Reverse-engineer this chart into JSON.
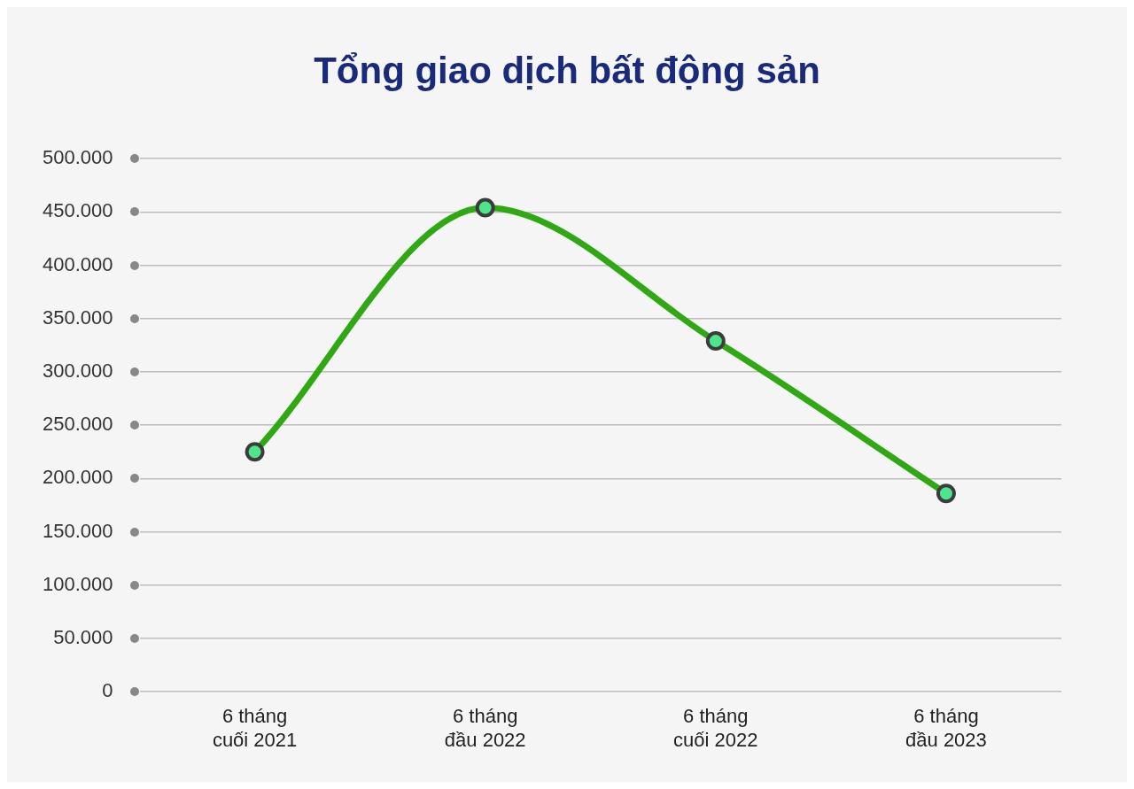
{
  "chart_data": {
    "type": "line",
    "title": "Tổng giao dịch bất động sản",
    "categories": [
      "6 tháng\ncuối 2021",
      "6 tháng\nđầu 2022",
      "6 tháng\ncuối 2022",
      "6 tháng\nđầu 2023"
    ],
    "series": [
      {
        "color": "#2fa814",
        "values": [
          225000,
          454000,
          329000,
          186000
        ]
      }
    ],
    "ylim": [
      0,
      500000
    ],
    "yticks": [
      {
        "value": 0,
        "label": "0"
      },
      {
        "value": 50000,
        "label": "50.000"
      },
      {
        "value": 100000,
        "label": "100.000"
      },
      {
        "value": 150000,
        "label": "150.000"
      },
      {
        "value": 200000,
        "label": "200.000"
      },
      {
        "value": 250000,
        "label": "250.000"
      },
      {
        "value": 300000,
        "label": "300.000"
      },
      {
        "value": 350000,
        "label": "350.000"
      },
      {
        "value": 400000,
        "label": "400.000"
      },
      {
        "value": 450000,
        "label": "450.000"
      },
      {
        "value": 500000,
        "label": "500.000"
      }
    ],
    "grid": "y",
    "marker": "circle",
    "line_style": "solid",
    "legend": false
  }
}
